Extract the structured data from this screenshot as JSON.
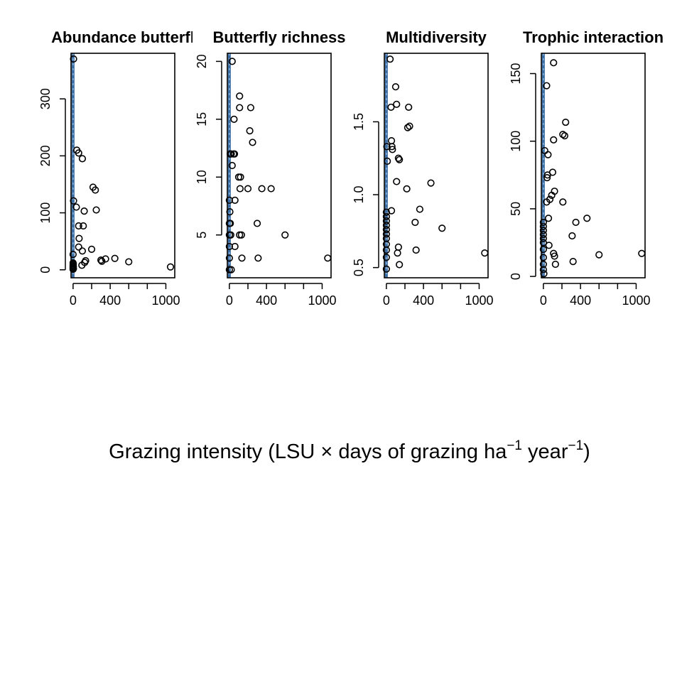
{
  "figure": {
    "xlabel": {
      "main": "Grazing intensity (LSU × days of grazing ha",
      "sup1": "−1",
      "mid": " year",
      "sup2": "−1",
      "end": ")"
    }
  },
  "colors": {
    "axis": "#000000",
    "points": "#000000",
    "line": "#3a6ea5",
    "background": "#ffffff"
  },
  "chart_data": [
    {
      "type": "scatter",
      "title": "Abundance butterfl",
      "xlabel": "",
      "ylabel": "",
      "xlim": [
        -22,
        1096
      ],
      "ylim": [
        -14,
        380
      ],
      "xticks": [
        0,
        200,
        400,
        600,
        800,
        1000
      ],
      "xtick_labels": [
        "0",
        "",
        "400",
        "",
        "",
        "1000"
      ],
      "yticks": [
        0,
        100,
        200,
        300
      ],
      "yticks_labels": [
        "0",
        "100",
        "200",
        "300"
      ],
      "vline": 0,
      "points": [
        [
          5,
          370
        ],
        [
          5,
          121
        ],
        [
          0,
          27
        ],
        [
          0,
          12
        ],
        [
          0,
          8
        ],
        [
          0,
          5
        ],
        [
          0,
          3
        ],
        [
          0,
          1
        ],
        [
          2,
          10
        ],
        [
          3,
          6
        ],
        [
          4,
          2
        ],
        [
          40,
          210
        ],
        [
          60,
          205
        ],
        [
          100,
          195
        ],
        [
          35,
          110
        ],
        [
          60,
          77
        ],
        [
          110,
          77
        ],
        [
          65,
          55
        ],
        [
          60,
          40
        ],
        [
          100,
          33
        ],
        [
          95,
          8
        ],
        [
          135,
          16
        ],
        [
          125,
          13
        ],
        [
          200,
          36
        ],
        [
          215,
          145
        ],
        [
          240,
          140
        ],
        [
          250,
          105
        ],
        [
          120,
          103
        ],
        [
          300,
          17
        ],
        [
          310,
          15
        ],
        [
          350,
          19
        ],
        [
          450,
          20
        ],
        [
          600,
          14
        ],
        [
          1050,
          5
        ]
      ]
    },
    {
      "type": "scatter",
      "title": "Butterfly richness",
      "xlabel": "",
      "ylabel": "",
      "xlim": [
        -22,
        1096
      ],
      "ylim": [
        1.3,
        20.7
      ],
      "xticks": [
        0,
        200,
        400,
        600,
        800,
        1000
      ],
      "xtick_labels": [
        "0",
        "",
        "400",
        "",
        "",
        "1000"
      ],
      "yticks": [
        5,
        10,
        15,
        20
      ],
      "yticks_labels": [
        "5",
        "10",
        "15",
        "20"
      ],
      "vline": 0,
      "points": [
        [
          30,
          20
        ],
        [
          10,
          12
        ],
        [
          20,
          12
        ],
        [
          0,
          8
        ],
        [
          5,
          7
        ],
        [
          0,
          6
        ],
        [
          10,
          6
        ],
        [
          0,
          5
        ],
        [
          15,
          5
        ],
        [
          0,
          4
        ],
        [
          0,
          3
        ],
        [
          0,
          2
        ],
        [
          20,
          2
        ],
        [
          30,
          11
        ],
        [
          45,
          12
        ],
        [
          55,
          12
        ],
        [
          50,
          15
        ],
        [
          60,
          8
        ],
        [
          60,
          4
        ],
        [
          110,
          17
        ],
        [
          110,
          16
        ],
        [
          100,
          10
        ],
        [
          120,
          10
        ],
        [
          115,
          9
        ],
        [
          110,
          5
        ],
        [
          130,
          5
        ],
        [
          135,
          3
        ],
        [
          220,
          14
        ],
        [
          230,
          16
        ],
        [
          250,
          13
        ],
        [
          200,
          9
        ],
        [
          300,
          6
        ],
        [
          310,
          3
        ],
        [
          350,
          9
        ],
        [
          450,
          9
        ],
        [
          600,
          5
        ],
        [
          1060,
          3
        ]
      ]
    },
    {
      "type": "scatter",
      "title": "Multidiversity",
      "xlabel": "",
      "ylabel": "",
      "xlim": [
        -22,
        1096
      ],
      "ylim": [
        0.43,
        1.97
      ],
      "xticks": [
        0,
        200,
        400,
        600,
        800,
        1000
      ],
      "xtick_labels": [
        "0",
        "",
        "400",
        "",
        "",
        "1000"
      ],
      "yticks": [
        0.5,
        1.0,
        1.5
      ],
      "yticks_labels": [
        "0.5",
        "1.0",
        "1.5"
      ],
      "vline": 0,
      "points": [
        [
          40,
          1.93
        ],
        [
          5,
          1.33
        ],
        [
          10,
          1.23
        ],
        [
          0,
          0.88
        ],
        [
          0,
          0.85
        ],
        [
          0,
          0.82
        ],
        [
          0,
          0.79
        ],
        [
          0,
          0.76
        ],
        [
          0,
          0.73
        ],
        [
          0,
          0.7
        ],
        [
          0,
          0.66
        ],
        [
          0,
          0.62
        ],
        [
          0,
          0.57
        ],
        [
          0,
          0.49
        ],
        [
          55,
          1.37
        ],
        [
          60,
          1.33
        ],
        [
          65,
          1.31
        ],
        [
          50,
          1.6
        ],
        [
          100,
          1.74
        ],
        [
          110,
          1.62
        ],
        [
          130,
          1.25
        ],
        [
          140,
          1.24
        ],
        [
          110,
          1.09
        ],
        [
          55,
          0.89
        ],
        [
          120,
          0.6
        ],
        [
          130,
          0.64
        ],
        [
          140,
          0.52
        ],
        [
          230,
          1.46
        ],
        [
          250,
          1.47
        ],
        [
          240,
          1.6
        ],
        [
          220,
          1.04
        ],
        [
          310,
          0.81
        ],
        [
          320,
          0.62
        ],
        [
          360,
          0.9
        ],
        [
          480,
          1.08
        ],
        [
          600,
          0.77
        ],
        [
          1060,
          0.6
        ]
      ]
    },
    {
      "type": "scatter",
      "title": "Trophic interaction",
      "xlabel": "",
      "ylabel": "",
      "xlim": [
        -22,
        1096
      ],
      "ylim": [
        -1,
        165
      ],
      "xticks": [
        0,
        200,
        400,
        600,
        800,
        1000
      ],
      "xtick_labels": [
        "0",
        "",
        "400",
        "",
        "",
        "1000"
      ],
      "yticks": [
        0,
        50,
        100,
        150
      ],
      "yticks_labels": [
        "0",
        "50",
        "100",
        "150"
      ],
      "vline": 0,
      "points": [
        [
          110,
          158
        ],
        [
          35,
          141
        ],
        [
          15,
          93
        ],
        [
          50,
          90
        ],
        [
          45,
          75
        ],
        [
          40,
          73
        ],
        [
          100,
          77
        ],
        [
          120,
          63
        ],
        [
          90,
          60
        ],
        [
          70,
          57
        ],
        [
          35,
          55
        ],
        [
          55,
          43
        ],
        [
          0,
          40
        ],
        [
          0,
          37
        ],
        [
          0,
          34
        ],
        [
          0,
          31
        ],
        [
          0,
          28
        ],
        [
          0,
          25
        ],
        [
          0,
          20
        ],
        [
          0,
          14
        ],
        [
          0,
          9
        ],
        [
          0,
          5
        ],
        [
          5,
          2
        ],
        [
          60,
          23
        ],
        [
          110,
          17
        ],
        [
          120,
          15
        ],
        [
          130,
          9
        ],
        [
          110,
          101
        ],
        [
          210,
          105
        ],
        [
          230,
          104
        ],
        [
          240,
          114
        ],
        [
          210,
          55
        ],
        [
          310,
          30
        ],
        [
          320,
          11
        ],
        [
          350,
          40
        ],
        [
          470,
          43
        ],
        [
          600,
          16
        ],
        [
          1060,
          17
        ]
      ]
    }
  ]
}
